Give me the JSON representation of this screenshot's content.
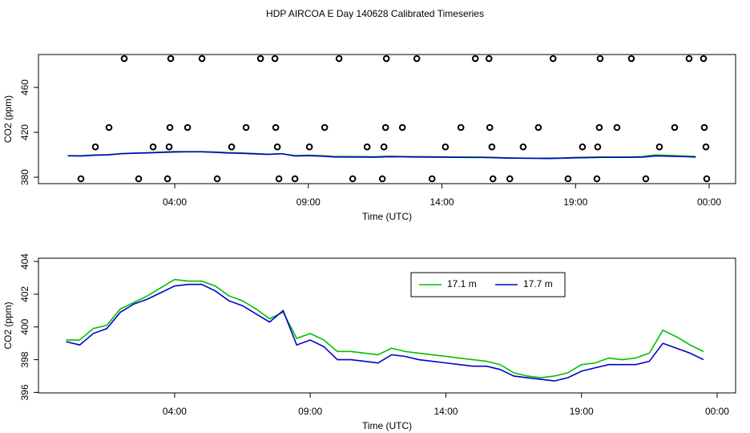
{
  "chart_data": [
    {
      "type": "line",
      "title": "HDP AIRCOA E  Day 140628  Calibrated Timeseries",
      "xlabel": "Time (UTC)",
      "ylabel": "CO2 (ppm)",
      "x": [
        0,
        0.5,
        1,
        1.5,
        2,
        2.5,
        3,
        3.5,
        4,
        4.5,
        5,
        5.5,
        6,
        6.5,
        7,
        7.5,
        8,
        8.5,
        9,
        9.5,
        10,
        10.5,
        11,
        11.5,
        12,
        12.5,
        13,
        13.5,
        14,
        14.5,
        15,
        15.5,
        16,
        16.5,
        17,
        17.5,
        18,
        18.5,
        19,
        19.5,
        20,
        20.5,
        21,
        21.5,
        22,
        22.5,
        23,
        23.5
      ],
      "series": [
        {
          "color": "#00c000",
          "values": [
            399.2,
            399.2,
            399.9,
            400.1,
            401.1,
            401.5,
            401.9,
            402.4,
            402.9,
            402.8,
            402.8,
            402.5,
            401.9,
            401.6,
            401.1,
            400.5,
            400.9,
            399.3,
            399.6,
            399.2,
            398.5,
            398.5,
            398.4,
            398.3,
            398.7,
            398.5,
            398.4,
            398.3,
            398.2,
            398.1,
            398.0,
            397.9,
            397.7,
            397.2,
            397.0,
            396.9,
            397.0,
            397.2,
            397.7,
            397.8,
            398.1,
            398.0,
            398.1,
            398.4,
            399.8,
            399.4,
            398.9,
            398.5
          ]
        },
        {
          "color": "#0000cc",
          "values": [
            399.1,
            398.9,
            399.6,
            399.9,
            400.9,
            401.4,
            401.7,
            402.1,
            402.5,
            402.6,
            402.6,
            402.2,
            401.6,
            401.3,
            400.8,
            400.3,
            401.0,
            398.9,
            399.2,
            398.8,
            398.0,
            398.0,
            397.9,
            397.8,
            398.3,
            398.2,
            398.0,
            397.9,
            397.8,
            397.7,
            397.6,
            397.6,
            397.4,
            397.0,
            396.9,
            396.8,
            396.7,
            396.9,
            397.3,
            397.5,
            397.7,
            397.7,
            397.7,
            397.9,
            399.0,
            398.7,
            398.4,
            398.0
          ]
        }
      ],
      "points": {
        "color": "#000000",
        "x": [
          2.11,
          3.85,
          5.02,
          7.21,
          7.75,
          10.15,
          11.92,
          13.06,
          15.25,
          15.76,
          18.16,
          19.92,
          21.09,
          23.25,
          23.79,
          1.54,
          3.82,
          4.48,
          6.67,
          7.78,
          9.61,
          11.89,
          12.52,
          14.71,
          15.79,
          17.61,
          19.89,
          20.55,
          22.71,
          23.82,
          1.03,
          3.19,
          3.79,
          6.13,
          7.84,
          9.04,
          11.2,
          11.83,
          14.13,
          15.87,
          17.04,
          19.26,
          19.83,
          22.14,
          23.88,
          0.49,
          2.65,
          3.73,
          5.59,
          7.9,
          8.5,
          10.66,
          11.77,
          13.63,
          15.91,
          16.54,
          18.72,
          19.8,
          21.63,
          23.91
        ],
        "y": [
          485.7,
          485.7,
          485.7,
          485.7,
          485.7,
          485.7,
          485.7,
          485.7,
          485.7,
          485.7,
          485.7,
          485.7,
          485.7,
          485.7,
          485.7,
          424.3,
          424.3,
          424.3,
          424.3,
          424.3,
          424.3,
          424.3,
          424.3,
          424.3,
          424.3,
          424.3,
          424.3,
          424.3,
          424.3,
          424.3,
          407,
          407,
          407,
          407,
          407,
          407,
          407,
          407,
          407,
          407,
          407,
          407,
          407,
          407,
          407,
          378.6,
          378.6,
          378.6,
          378.6,
          378.6,
          378.6,
          378.6,
          378.6,
          378.6,
          378.6,
          378.6,
          378.6,
          378.6,
          378.6,
          378.6
        ]
      },
      "xlim": [
        -1.1,
        24.99
      ],
      "xticks": [
        {
          "value": 4,
          "label": "04:00"
        },
        {
          "value": 9,
          "label": "09:00"
        },
        {
          "value": 14,
          "label": "14:00"
        },
        {
          "value": 19,
          "label": "19:00"
        },
        {
          "value": 24,
          "label": "00:00"
        }
      ],
      "ylim": [
        374.3,
        489.3
      ],
      "yticks": [
        380,
        420,
        460
      ]
    },
    {
      "type": "line",
      "xlabel": "Time (UTC)",
      "ylabel": "CO2 (ppm)",
      "x": [
        0,
        0.5,
        1,
        1.5,
        2,
        2.5,
        3,
        3.5,
        4,
        4.5,
        5,
        5.5,
        6,
        6.5,
        7,
        7.5,
        8,
        8.5,
        9,
        9.5,
        10,
        10.5,
        11,
        11.5,
        12,
        12.5,
        13,
        13.5,
        14,
        14.5,
        15,
        15.5,
        16,
        16.5,
        17,
        17.5,
        18,
        18.5,
        19,
        19.5,
        20,
        20.5,
        21,
        21.5,
        22,
        22.5,
        23,
        23.5
      ],
      "series": [
        {
          "name": "17.1 m",
          "color": "#00c000",
          "values": [
            399.2,
            399.2,
            399.9,
            400.1,
            401.1,
            401.5,
            401.9,
            402.4,
            402.9,
            402.8,
            402.8,
            402.5,
            401.9,
            401.6,
            401.1,
            400.5,
            400.9,
            399.3,
            399.6,
            399.2,
            398.5,
            398.5,
            398.4,
            398.3,
            398.7,
            398.5,
            398.4,
            398.3,
            398.2,
            398.1,
            398.0,
            397.9,
            397.7,
            397.2,
            397.0,
            396.9,
            397.0,
            397.2,
            397.7,
            397.8,
            398.1,
            398.0,
            398.1,
            398.4,
            399.8,
            399.4,
            398.9,
            398.5
          ]
        },
        {
          "name": "17.7 m",
          "color": "#0000cc",
          "values": [
            399.1,
            398.9,
            399.6,
            399.9,
            400.9,
            401.4,
            401.7,
            402.1,
            402.5,
            402.6,
            402.6,
            402.2,
            401.6,
            401.3,
            400.8,
            400.3,
            401.0,
            398.9,
            399.2,
            398.8,
            398.0,
            398.0,
            397.9,
            397.8,
            398.3,
            398.2,
            398.0,
            397.9,
            397.8,
            397.7,
            397.6,
            397.6,
            397.4,
            397.0,
            396.9,
            396.8,
            396.7,
            396.9,
            397.3,
            397.5,
            397.7,
            397.7,
            397.7,
            397.9,
            399.0,
            398.7,
            398.4,
            398.0
          ]
        }
      ],
      "xlim": [
        -1.02,
        24.68
      ],
      "xticks": [
        {
          "value": 4,
          "label": "04:00"
        },
        {
          "value": 9,
          "label": "09:00"
        },
        {
          "value": 14,
          "label": "14:00"
        },
        {
          "value": 19,
          "label": "19:00"
        },
        {
          "value": 24,
          "label": "00:00"
        }
      ],
      "ylim": [
        395.97,
        404.2
      ],
      "yticks": [
        396,
        398,
        400,
        402,
        404
      ],
      "legend": "top"
    }
  ]
}
